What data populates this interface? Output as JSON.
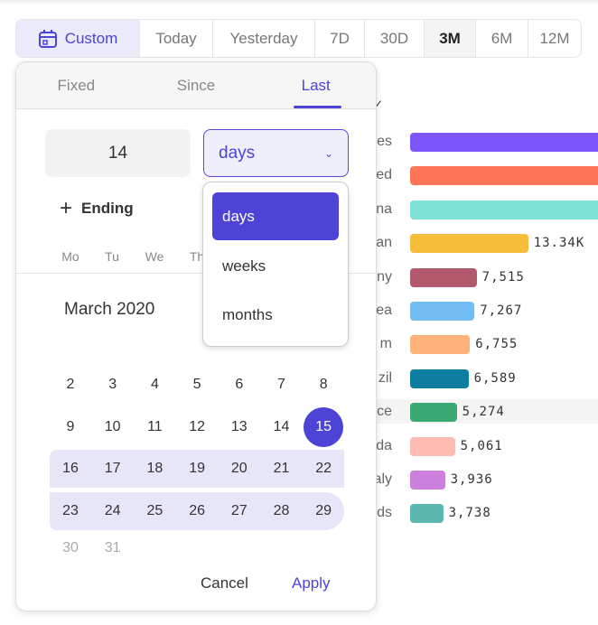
{
  "range_bar": {
    "custom": "Custom",
    "options": [
      "Today",
      "Yesterday",
      "7D",
      "30D",
      "3M",
      "6M",
      "12M"
    ],
    "active": "3M"
  },
  "chart_data": {
    "type": "bar",
    "orientation": "horizontal",
    "categories": [
      "es",
      "ed",
      "na",
      "an",
      "ny",
      "ea",
      "m",
      "zil",
      "ce",
      "da",
      "aly",
      "ds"
    ],
    "values": [
      null,
      null,
      null,
      13340,
      7515,
      7267,
      6755,
      6589,
      5274,
      5061,
      3936,
      3738
    ],
    "labels": [
      "",
      "",
      "",
      "13.34K",
      "7,515",
      "7,267",
      "6,755",
      "6,589",
      "5,274",
      "5,061",
      "3,936",
      "3,738"
    ],
    "colors": [
      "#7b57fb",
      "#ff7557",
      "#80e1d9",
      "#f8bc3b",
      "#b2596e",
      "#72bef4",
      "#ffb27a",
      "#0d7ea0",
      "#3ba974",
      "#febbb2",
      "#ca80dc",
      "#5bb7af"
    ]
  },
  "popup": {
    "tabs": [
      "Fixed",
      "Since",
      "Last"
    ],
    "active_tab": "Last",
    "amount": "14",
    "unit": "days",
    "ending": "Ending",
    "weekdays": [
      "Mo",
      "Tu",
      "We",
      "Th"
    ],
    "month": "March 2020",
    "weeks": [
      [
        "2",
        "3",
        "4",
        "5",
        "6",
        "7",
        "8"
      ],
      [
        "9",
        "10",
        "11",
        "12",
        "13",
        "14",
        "15"
      ],
      [
        "16",
        "17",
        "18",
        "19",
        "20",
        "21",
        "22"
      ],
      [
        "23",
        "24",
        "25",
        "26",
        "27",
        "28",
        "29"
      ],
      [
        "30",
        "31"
      ]
    ],
    "selected_day": "15",
    "cancel": "Cancel",
    "apply": "Apply",
    "unit_options": [
      "days",
      "weeks",
      "months"
    ]
  },
  "accent": "#4d43d6"
}
